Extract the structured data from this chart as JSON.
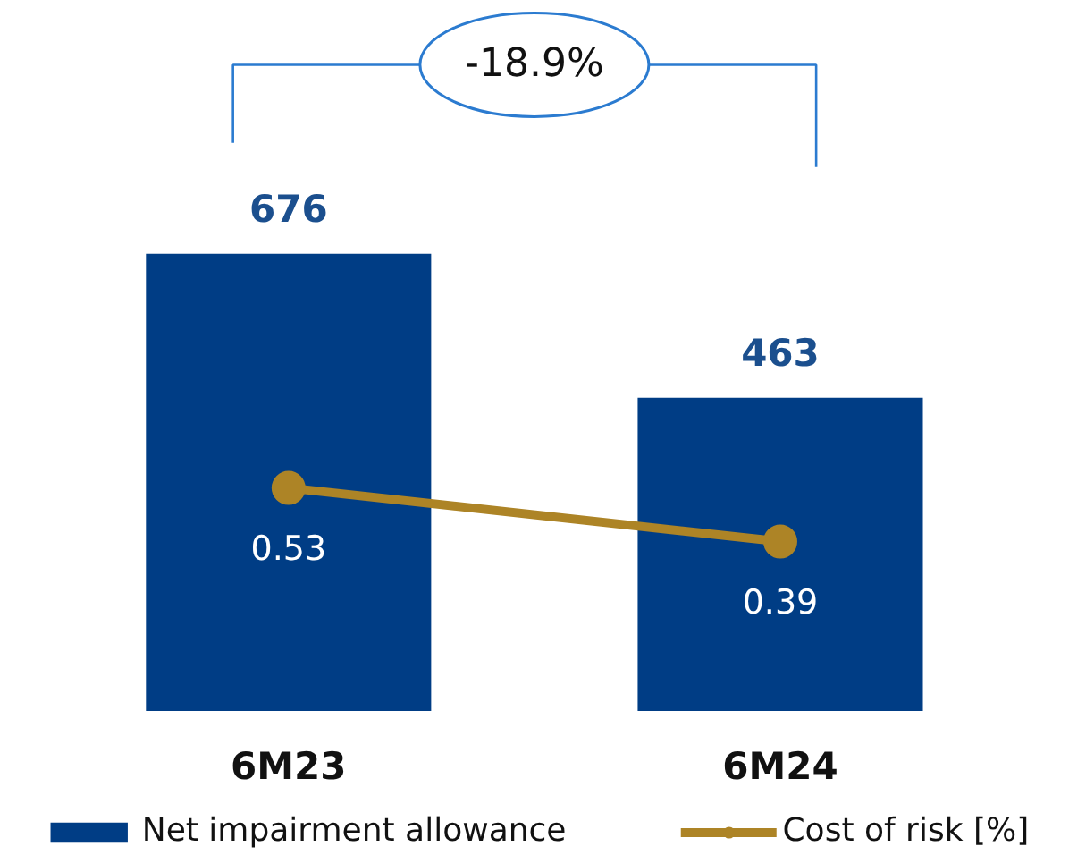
{
  "chart_data": {
    "type": "bar",
    "categories": [
      "6M23",
      "6M24"
    ],
    "series": [
      {
        "name": "Net impairment allowance",
        "color": "#003d85",
        "values": [
          676,
          463
        ]
      },
      {
        "name": "Cost of risk [%]",
        "type": "line",
        "axis": "y2",
        "color": "#ad8426",
        "values": [
          0.53,
          0.39
        ]
      }
    ],
    "tick_labels": "x",
    "legend": "bottom",
    "marker": "circle",
    "line_style": "solid",
    "data_labels": true,
    "annotations": [
      "-18.9%"
    ]
  }
}
